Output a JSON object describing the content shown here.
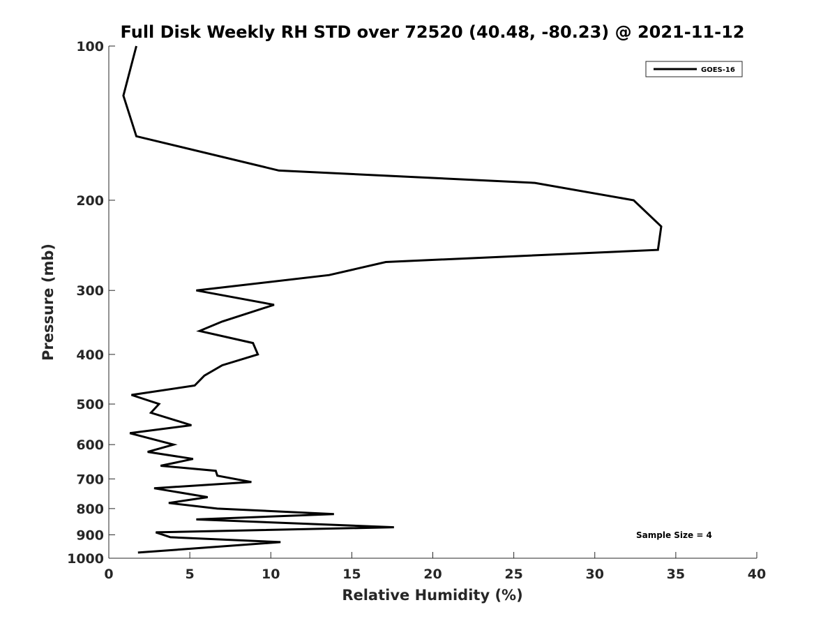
{
  "chart_data": {
    "type": "line",
    "title": "Full Disk Weekly RH STD over 72520 (40.48, -80.23) @ 2021-11-12",
    "xlabel": "Relative Humidity (%)",
    "ylabel": "Pressure (mb)",
    "xlim": [
      0,
      40
    ],
    "ylim": [
      100,
      1000
    ],
    "yscale": "log",
    "reversed_y": true,
    "x_ticks": [
      0,
      5,
      10,
      15,
      20,
      25,
      30,
      35,
      40
    ],
    "x_tick_labels": [
      "0",
      "5",
      "10",
      "15",
      "20",
      "25",
      "30",
      "35",
      "40"
    ],
    "y_ticks": [
      100,
      200,
      300,
      400,
      500,
      600,
      700,
      800,
      900,
      1000
    ],
    "y_tick_labels": [
      "100",
      "200",
      "300",
      "400",
      "500",
      "600",
      "700",
      "800",
      "900",
      "1000"
    ],
    "grid": false,
    "legend_position": "top-right",
    "series": [
      {
        "name": "GOES-16",
        "color": "#000000",
        "points": [
          [
            1.7,
            100
          ],
          [
            0.9,
            125
          ],
          [
            1.7,
            150
          ],
          [
            10.5,
            175
          ],
          [
            26.3,
            185
          ],
          [
            32.4,
            200
          ],
          [
            34.1,
            225
          ],
          [
            33.9,
            250
          ],
          [
            17.1,
            264
          ],
          [
            13.6,
            280
          ],
          [
            5.4,
            300
          ],
          [
            10.2,
            320
          ],
          [
            7.0,
            345
          ],
          [
            5.6,
            360
          ],
          [
            8.9,
            380
          ],
          [
            9.2,
            400
          ],
          [
            7.0,
            420
          ],
          [
            5.9,
            440
          ],
          [
            5.3,
            460
          ],
          [
            1.4,
            480
          ],
          [
            3.1,
            500
          ],
          [
            2.6,
            520
          ],
          [
            5.1,
            550
          ],
          [
            1.3,
            570
          ],
          [
            4.0,
            600
          ],
          [
            2.4,
            620
          ],
          [
            5.2,
            640
          ],
          [
            3.2,
            660
          ],
          [
            6.6,
            675
          ],
          [
            6.7,
            690
          ],
          [
            8.8,
            710
          ],
          [
            2.8,
            730
          ],
          [
            6.1,
            760
          ],
          [
            3.7,
            780
          ],
          [
            6.7,
            800
          ],
          [
            13.9,
            820
          ],
          [
            5.4,
            840
          ],
          [
            17.6,
            870
          ],
          [
            2.9,
            890
          ],
          [
            3.8,
            910
          ],
          [
            10.6,
            930
          ],
          [
            1.8,
            975
          ]
        ]
      }
    ],
    "annotations": [
      "Sample Size = 4"
    ]
  }
}
